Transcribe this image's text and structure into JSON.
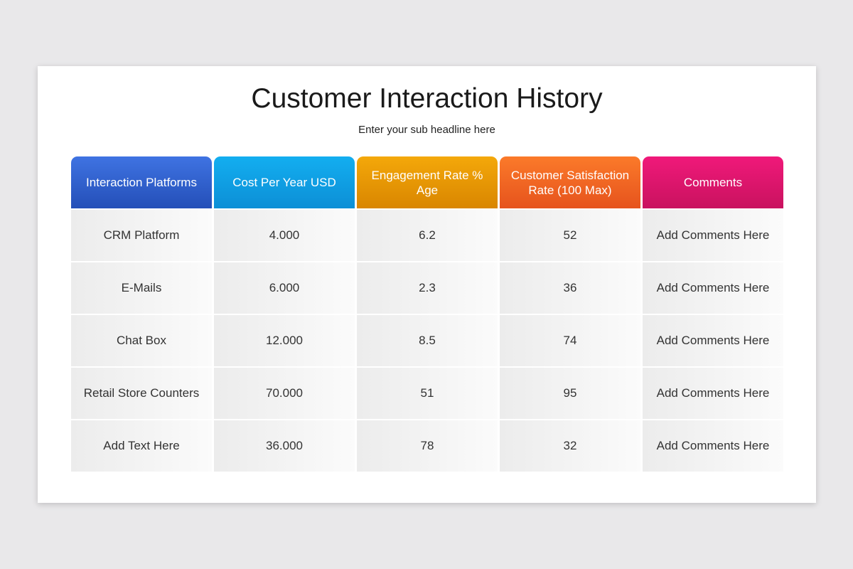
{
  "title": "Customer Interaction History",
  "subtitle": "Enter your sub headline here",
  "table": {
    "headers": [
      "Interaction Platforms",
      "Cost Per Year USD",
      "Engagement Rate % Age",
      "Customer Satisfaction Rate (100 Max)",
      "Comments"
    ],
    "rows": [
      [
        "CRM Platform",
        "4.000",
        "6.2",
        "52",
        "Add Comments Here"
      ],
      [
        "E-Mails",
        "6.000",
        "2.3",
        "36",
        "Add Comments Here"
      ],
      [
        "Chat Box",
        "12.000",
        "8.5",
        "74",
        "Add Comments Here"
      ],
      [
        "Retail Store Counters",
        "70.000",
        "51",
        "95",
        "Add Comments Here"
      ],
      [
        "Add Text Here",
        "36.000",
        "78",
        "32",
        "Add Comments Here"
      ]
    ]
  },
  "colors": {
    "header_1": "#2f5fcc",
    "header_2": "#0f9fe3",
    "header_3": "#e8980a",
    "header_4": "#f26724",
    "header_5": "#dd156c"
  }
}
